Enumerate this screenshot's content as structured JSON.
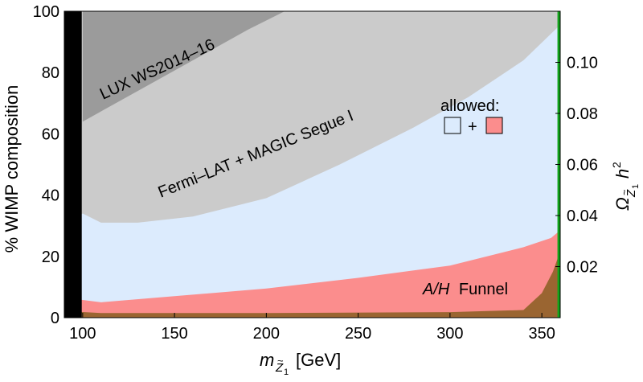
{
  "chart_data": {
    "type": "area",
    "xlabel": "[GeV]",
    "xlabel_symbol": "m",
    "xlabel_sub": "Z",
    "xlabel_subsub": "1",
    "xlabel_tilde": "~",
    "ylabel": "% WIMP composition",
    "y2label_symbol": "Ω",
    "y2label_sub": "Z",
    "y2label_subsub": "1",
    "y2label_tilde": "~",
    "y2label_h": "h",
    "y2label_exp": "2",
    "xlim": [
      90,
      360
    ],
    "ylim": [
      0,
      100
    ],
    "y2lim": [
      0,
      0.12
    ],
    "xticks": [
      100,
      150,
      200,
      250,
      300,
      350
    ],
    "yticks": [
      0,
      20,
      40,
      60,
      80,
      100
    ],
    "y2ticks": [
      0.02,
      0.04,
      0.06,
      0.08,
      0.1
    ],
    "y2tick_labels": [
      "0.02",
      "0.04",
      "0.06",
      "0.08",
      "0.10"
    ],
    "colors": {
      "lux": "#9b9b9b",
      "fermi": "#cbcbcb",
      "allowed_blue": "#dcebfd",
      "funnel": "#fb8d8d",
      "brown": "#9a6531",
      "left_band": "#000000",
      "right_band": "#13a31b"
    },
    "regions": [
      {
        "name": "LUX WS2014–16",
        "lower_boundary": [
          [
            100,
            64
          ],
          [
            130,
            74
          ],
          [
            160,
            84
          ],
          [
            190,
            94
          ],
          [
            210,
            100
          ]
        ]
      },
      {
        "name": "Fermi–LAT + MAGIC Segue I",
        "lower_boundary": [
          [
            100,
            32
          ],
          [
            110,
            31
          ],
          [
            130,
            31
          ],
          [
            160,
            33
          ],
          [
            200,
            39
          ],
          [
            240,
            50
          ],
          [
            280,
            62
          ],
          [
            310,
            72
          ],
          [
            340,
            84
          ],
          [
            360,
            96
          ]
        ]
      },
      {
        "name": "allowed (blue)",
        "upper_boundary": [
          [
            95,
            10
          ],
          [
            97,
            33
          ],
          [
            100,
            34
          ],
          [
            110,
            31
          ],
          [
            130,
            31
          ],
          [
            160,
            33
          ],
          [
            200,
            39
          ],
          [
            240,
            50
          ],
          [
            280,
            62
          ],
          [
            310,
            72
          ],
          [
            340,
            84
          ],
          [
            359,
            95
          ]
        ]
      },
      {
        "name": "A/H Funnel",
        "upper_boundary": [
          [
            97,
            6
          ],
          [
            110,
            5
          ],
          [
            150,
            7
          ],
          [
            200,
            9.5
          ],
          [
            250,
            13
          ],
          [
            300,
            17
          ],
          [
            340,
            23
          ],
          [
            355,
            26
          ],
          [
            359,
            28
          ]
        ]
      },
      {
        "name": "brown",
        "upper_boundary": [
          [
            95,
            2
          ],
          [
            110,
            1.5
          ],
          [
            200,
            1.5
          ],
          [
            300,
            1.8
          ],
          [
            340,
            2.5
          ],
          [
            350,
            8
          ],
          [
            356,
            15
          ],
          [
            359,
            20
          ]
        ]
      }
    ],
    "region_labels": {
      "lux": "LUX WS2014–16",
      "fermi": "Fermi–LAT + MAGIC Segue I",
      "funnel_italic": "A/H",
      "funnel_rest": "Funnel"
    },
    "legend": {
      "title": "allowed:",
      "plus": "+"
    }
  }
}
